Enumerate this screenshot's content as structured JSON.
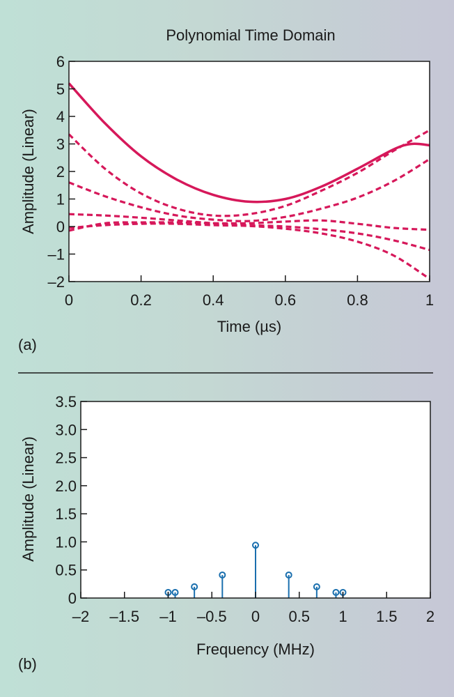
{
  "chart_data": [
    {
      "panel_label": "(a)",
      "type": "line",
      "title": "Polynomial Time Domain",
      "xlabel": "Time (µs)",
      "ylabel": "Amplitude  (Linear)",
      "xlim": [
        0,
        1
      ],
      "ylim": [
        -2,
        6
      ],
      "x_ticks": [
        0,
        0.2,
        0.4,
        0.6,
        0.8,
        1
      ],
      "x_tick_labels": [
        "0",
        "0.2",
        "0.4",
        "0.6",
        "0.8",
        "1"
      ],
      "y_ticks": [
        -2,
        -1,
        0,
        1,
        2,
        3,
        4,
        5,
        6
      ],
      "y_tick_labels": [
        "–2",
        "–1",
        "0",
        "1",
        "2",
        "3",
        "4",
        "5",
        "6"
      ],
      "grid": false,
      "color": "#d6185a",
      "series": [
        {
          "style": "solid",
          "x": [
            0,
            0.1,
            0.2,
            0.3,
            0.4,
            0.5,
            0.6,
            0.7,
            0.8,
            0.9,
            0.95,
            1.0
          ],
          "y": [
            5.2,
            3.75,
            2.55,
            1.7,
            1.15,
            0.9,
            1.0,
            1.45,
            2.1,
            2.8,
            3.0,
            2.95
          ]
        },
        {
          "style": "dashed",
          "x": [
            0,
            0.1,
            0.2,
            0.3,
            0.4,
            0.5,
            0.6,
            0.7,
            0.8,
            0.9,
            1.0
          ],
          "y": [
            3.35,
            2.1,
            1.2,
            0.65,
            0.4,
            0.45,
            0.75,
            1.3,
            1.95,
            2.75,
            3.5
          ]
        },
        {
          "style": "dashed",
          "x": [
            0,
            0.1,
            0.2,
            0.3,
            0.4,
            0.5,
            0.6,
            0.7,
            0.8,
            0.9,
            1.0
          ],
          "y": [
            1.6,
            1.1,
            0.7,
            0.4,
            0.25,
            0.2,
            0.35,
            0.65,
            1.05,
            1.65,
            2.45
          ]
        },
        {
          "style": "dashed",
          "x": [
            0,
            0.1,
            0.2,
            0.3,
            0.4,
            0.5,
            0.6,
            0.7,
            0.8,
            0.9,
            1.0
          ],
          "y": [
            0.45,
            0.4,
            0.32,
            0.22,
            0.12,
            0.05,
            0.0,
            -0.1,
            -0.25,
            -0.5,
            -0.85
          ]
        },
        {
          "style": "dashed",
          "x": [
            0,
            0.1,
            0.2,
            0.3,
            0.4,
            0.5,
            0.6,
            0.7,
            0.8,
            0.9,
            1.0
          ],
          "y": [
            -0.05,
            0.05,
            0.1,
            0.1,
            0.05,
            0.02,
            -0.08,
            -0.25,
            -0.55,
            -1.05,
            -1.9
          ]
        },
        {
          "style": "dashed",
          "x": [
            0,
            0.1,
            0.2,
            0.3,
            0.4,
            0.5,
            0.6,
            0.7,
            0.8,
            0.9,
            1.0
          ],
          "y": [
            -0.15,
            0.12,
            0.15,
            0.15,
            0.12,
            0.12,
            0.18,
            0.22,
            0.1,
            -0.05,
            -0.12
          ]
        }
      ]
    },
    {
      "panel_label": "(b)",
      "type": "stem",
      "xlabel": "Frequency (MHz)",
      "ylabel": "Amplitude  (Linear)",
      "xlim": [
        -2,
        2
      ],
      "ylim": [
        0,
        3.5
      ],
      "x_ticks": [
        -2,
        -1.5,
        -1,
        -0.5,
        0,
        0.5,
        1,
        1.5,
        2
      ],
      "x_tick_labels": [
        "–2",
        "–1.5",
        "–1",
        "–0.5",
        "0",
        "0.5",
        "1",
        "1.5",
        "2"
      ],
      "y_ticks": [
        0,
        0.5,
        1.0,
        1.5,
        2.0,
        2.5,
        3.0,
        3.5
      ],
      "y_tick_labels": [
        "0",
        "0.5",
        "1.0",
        "1.5",
        "2.0",
        "2.5",
        "3.0",
        "3.5"
      ],
      "grid": false,
      "color": "#1a6fae",
      "x": [
        -1.0,
        -0.92,
        -0.7,
        -0.38,
        0,
        0.38,
        0.7,
        0.92,
        1.0
      ],
      "y": [
        0.1,
        0.1,
        0.2,
        0.41,
        0.94,
        0.41,
        0.2,
        0.1,
        0.1
      ]
    }
  ]
}
